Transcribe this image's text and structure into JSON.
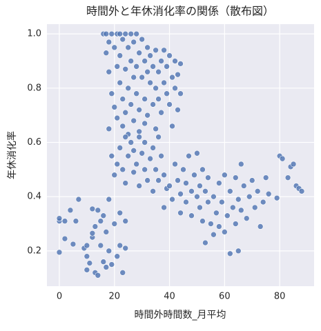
{
  "chart_data": {
    "type": "scatter",
    "title": "時間外と年休消化率の関係（散布図）",
    "x_label": "時間外時間数_月平均",
    "y_label": "年休消化率",
    "color": "#4c72b0",
    "grid": true,
    "xlim": [
      -4.5,
      92.5
    ],
    "ylim": [
      0.07,
      1.036
    ],
    "xticks": [
      0,
      20,
      40,
      60,
      80
    ],
    "yticks": [
      0.2,
      0.4,
      0.6,
      0.8,
      {
        "value": 1,
        "label": "1.0"
      }
    ],
    "x": [
      0,
      0,
      0,
      2,
      2,
      4,
      5,
      6,
      7,
      9,
      10,
      10,
      10,
      11,
      12,
      12,
      12,
      13,
      13,
      14,
      14,
      15,
      15,
      16,
      16,
      17,
      17,
      18,
      18,
      19,
      20,
      21,
      22,
      22,
      23,
      24,
      24,
      16,
      17,
      17,
      18,
      18,
      18,
      19,
      19,
      20,
      20,
      21,
      21,
      21,
      22,
      22,
      22,
      23,
      23,
      23,
      24,
      24,
      24,
      25,
      25,
      25,
      26,
      26,
      26,
      27,
      27,
      27,
      28,
      28,
      28,
      29,
      29,
      29,
      30,
      30,
      31,
      31,
      31,
      32,
      32,
      32,
      33,
      33,
      34,
      34,
      35,
      35,
      35,
      36,
      36,
      37,
      37,
      38,
      38,
      39,
      39,
      40,
      40,
      41,
      41,
      42,
      42,
      43,
      43,
      44,
      44,
      19,
      20,
      21,
      22,
      23,
      24,
      24,
      25,
      26,
      27,
      27,
      28,
      29,
      29,
      30,
      31,
      31,
      32,
      33,
      34,
      34,
      35,
      36,
      36,
      37,
      38,
      38,
      39,
      40,
      41,
      42,
      43,
      44,
      44,
      45,
      46,
      46,
      47,
      48,
      48,
      49,
      50,
      50,
      51,
      51,
      52,
      52,
      53,
      53,
      54,
      54,
      55,
      56,
      56,
      57,
      58,
      58,
      59,
      60,
      60,
      61,
      62,
      62,
      63,
      64,
      64,
      65,
      65,
      66,
      66,
      67,
      68,
      69,
      70,
      71,
      72,
      73,
      74,
      75,
      76,
      79,
      80,
      81,
      83,
      84,
      85,
      86,
      87,
      88
    ],
    "values": [
      0.195,
      0.31,
      0.32,
      0.31,
      0.245,
      0.35,
      0.225,
      0.31,
      0.39,
      0.21,
      0.22,
      0.18,
      0.13,
      0.155,
      0.25,
      0.265,
      0.355,
      0.12,
      0.29,
      0.11,
      0.35,
      0.31,
      0.22,
      0.33,
      0.16,
      0.27,
      0.14,
      0.39,
      0.2,
      0.15,
      0.3,
      0.18,
      0.34,
      0.22,
      0.12,
      0.21,
      0.31,
      1.0,
      1.0,
      0.93,
      0.97,
      0.86,
      0.65,
      1.0,
      0.78,
      0.95,
      0.73,
      1.0,
      0.88,
      0.69,
      1.0,
      0.82,
      0.92,
      0.76,
      0.98,
      0.66,
      1.0,
      0.87,
      0.71,
      0.95,
      0.8,
      0.63,
      1.0,
      0.9,
      0.74,
      0.84,
      0.97,
      0.68,
      1.0,
      0.78,
      0.88,
      0.93,
      0.72,
      0.64,
      0.98,
      0.84,
      0.9,
      0.76,
      0.67,
      0.86,
      0.95,
      0.7,
      0.82,
      0.92,
      0.74,
      0.88,
      0.8,
      0.65,
      0.94,
      0.86,
      0.76,
      0.9,
      0.71,
      0.94,
      0.82,
      0.78,
      0.88,
      0.74,
      0.92,
      0.84,
      0.66,
      0.8,
      0.9,
      0.72,
      0.85,
      0.78,
      0.89,
      0.55,
      0.48,
      0.52,
      0.58,
      0.5,
      0.62,
      0.45,
      0.55,
      0.6,
      0.49,
      0.57,
      0.52,
      0.62,
      0.44,
      0.56,
      0.5,
      0.6,
      0.46,
      0.54,
      0.58,
      0.42,
      0.5,
      0.62,
      0.46,
      0.55,
      0.48,
      0.36,
      0.43,
      0.44,
      0.39,
      0.52,
      0.46,
      0.34,
      0.41,
      0.5,
      0.38,
      0.45,
      0.55,
      0.42,
      0.33,
      0.48,
      0.4,
      0.56,
      0.36,
      0.44,
      0.31,
      0.5,
      0.42,
      0.23,
      0.38,
      0.47,
      0.3,
      0.4,
      0.26,
      0.34,
      0.45,
      0.29,
      0.38,
      0.48,
      0.27,
      0.33,
      0.42,
      0.19,
      0.36,
      0.3,
      0.47,
      0.39,
      0.2,
      0.52,
      0.35,
      0.44,
      0.32,
      0.4,
      0.46,
      0.36,
      0.42,
      0.29,
      0.38,
      0.47,
      0.41,
      0.395,
      0.55,
      0.54,
      0.47,
      0.51,
      0.52,
      0.44,
      0.43,
      0.42
    ]
  }
}
